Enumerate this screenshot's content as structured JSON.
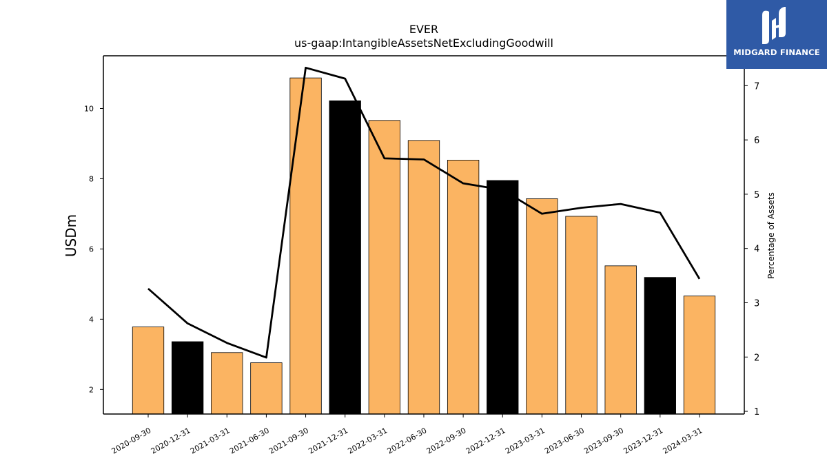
{
  "chart_data": {
    "type": "bar",
    "title": "EVER",
    "subtitle": "us-gaap:IntangibleAssetsNetExcludingGoodwill",
    "ylabel": "USDm",
    "y2label": "Percentage of Assets",
    "categories": [
      "2020-09-30",
      "2020-12-31",
      "2021-03-31",
      "2021-06-30",
      "2021-09-30",
      "2021-12-31",
      "2022-03-31",
      "2022-06-30",
      "2022-09-30",
      "2022-12-31",
      "2023-03-31",
      "2023-06-30",
      "2023-09-30",
      "2023-12-31",
      "2024-03-31"
    ],
    "series": [
      {
        "values": [
          3.78,
          3.36,
          3.05,
          2.76,
          10.87,
          10.22,
          9.66,
          9.09,
          8.53,
          7.95,
          7.43,
          6.93,
          5.52,
          5.19,
          4.66
        ],
        "colors": [
          "#fbb462",
          "#000000",
          "#fbb462",
          "#fbb462",
          "#fbb462",
          "#000000",
          "#fbb462",
          "#fbb462",
          "#fbb462",
          "#000000",
          "#fbb462",
          "#fbb462",
          "#fbb462",
          "#000000",
          "#fbb462"
        ]
      },
      {
        "axis": "right",
        "values": [
          3.26,
          2.62,
          2.26,
          1.99,
          7.33,
          7.13,
          5.66,
          5.64,
          5.2,
          5.08,
          4.64,
          4.75,
          4.82,
          4.66,
          3.44
        ]
      }
    ],
    "ylim": [
      1.3,
      11.5
    ],
    "yticks": [
      2,
      4,
      6,
      8,
      10
    ],
    "y2lim": [
      0.95,
      7.55
    ],
    "y2ticks": [
      1,
      2,
      3,
      4,
      5,
      6,
      7
    ],
    "grid": false,
    "legend": "none"
  },
  "logo": {
    "text": "MIDGARD FINANCE"
  }
}
